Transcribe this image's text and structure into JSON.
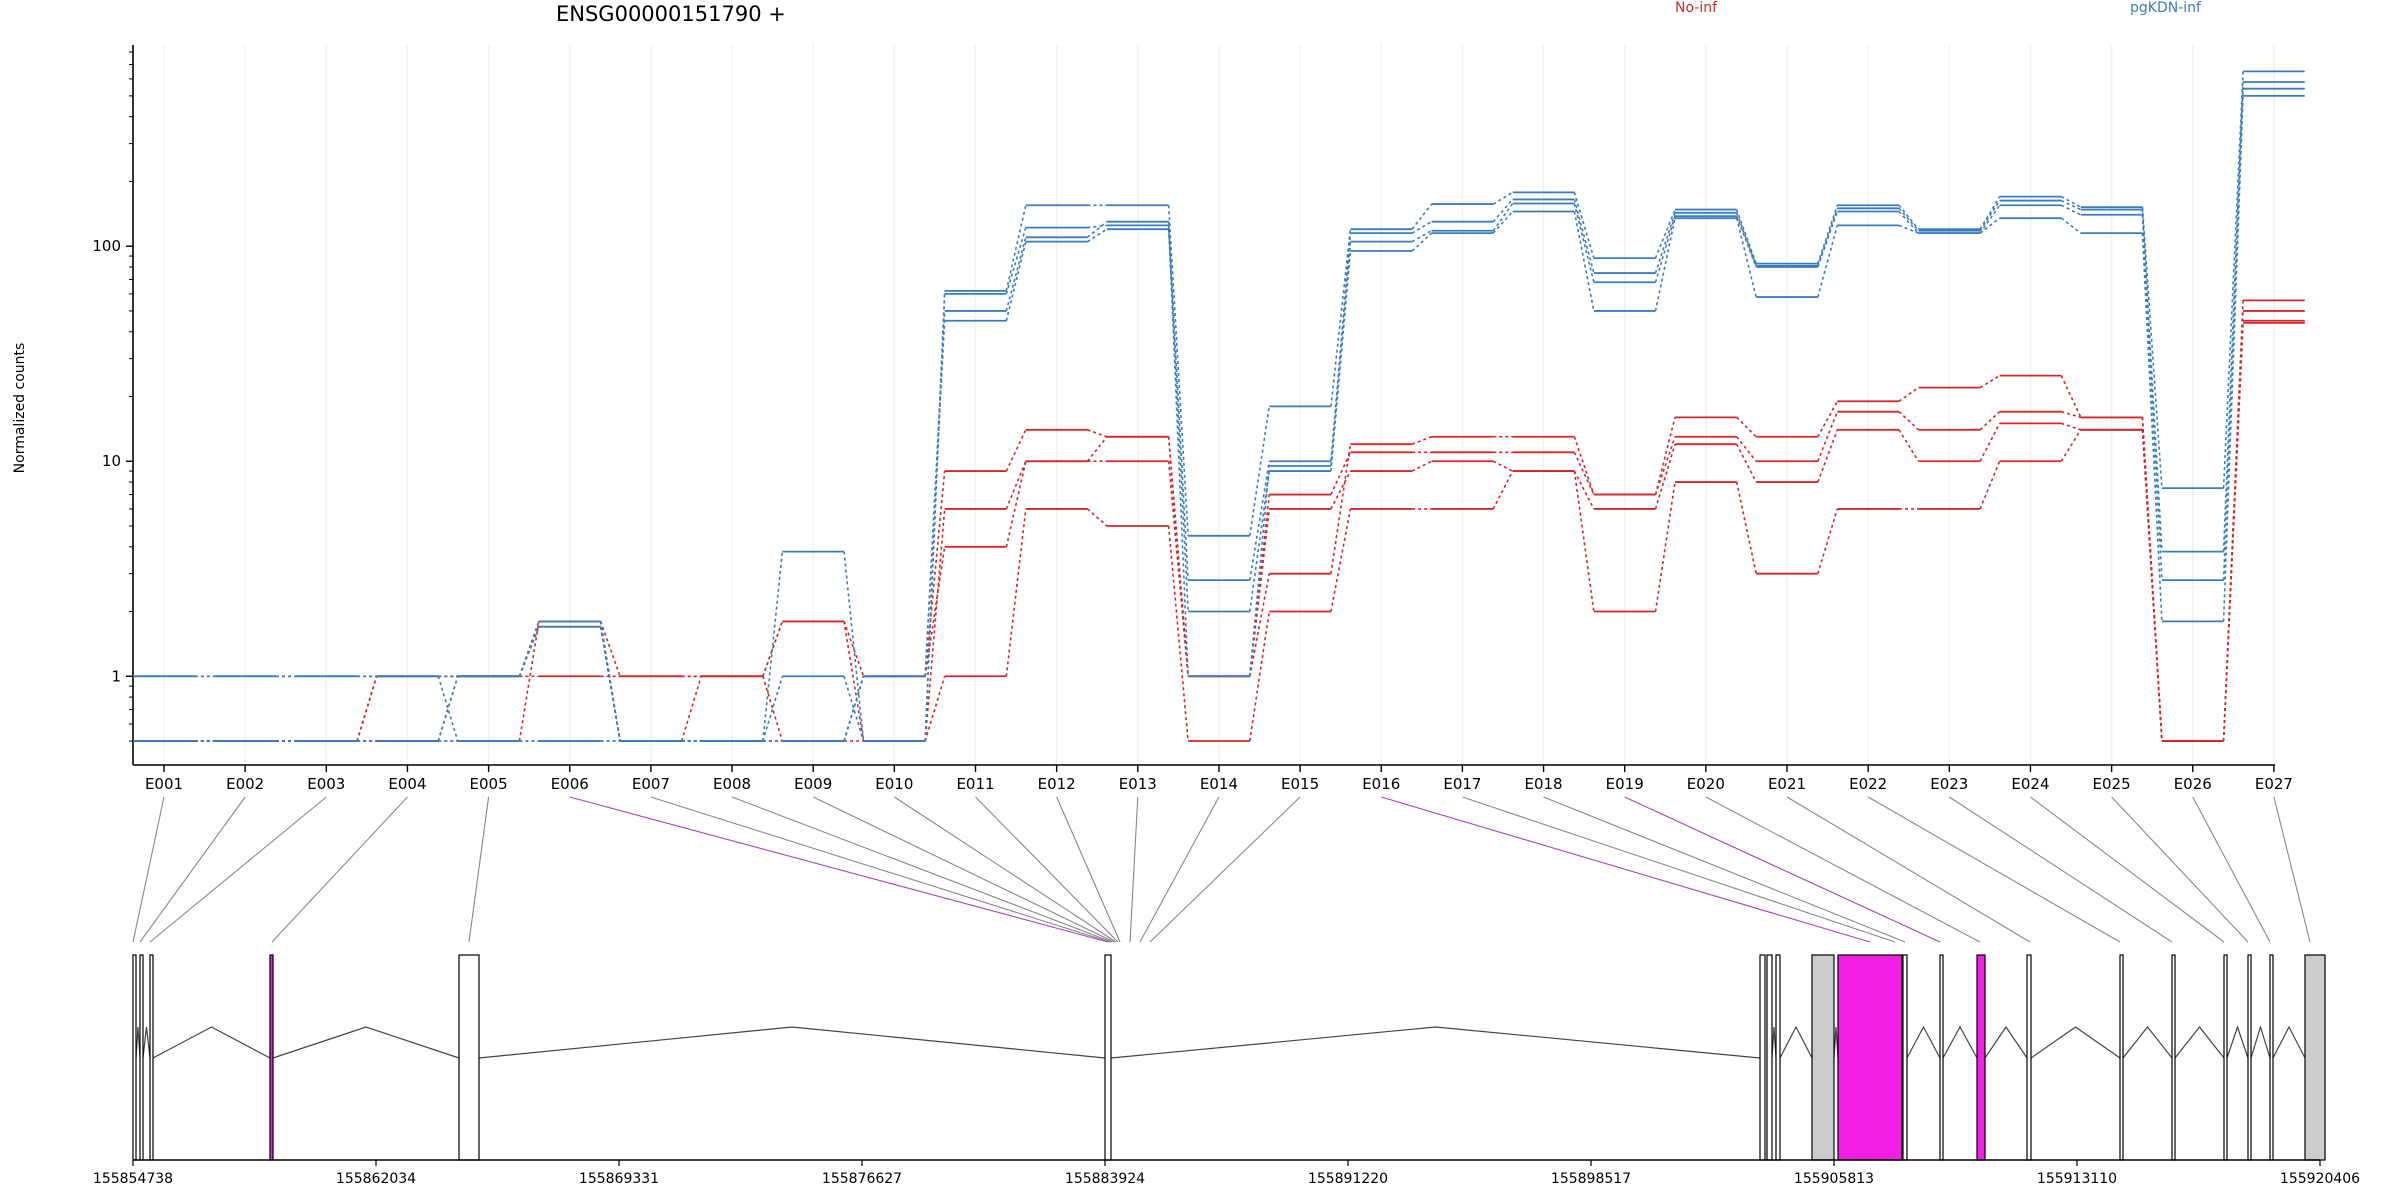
{
  "chart_data": {
    "type": "line",
    "title": "ENSG00000151790 +",
    "ylabel": "Normalized counts",
    "yscale": "log",
    "ylim": [
      0.5,
      800
    ],
    "yticks": [
      1,
      10,
      100
    ],
    "categories": [
      "E001",
      "E002",
      "E003",
      "E004",
      "E005",
      "E006",
      "E007",
      "E008",
      "E009",
      "E010",
      "E011",
      "E012",
      "E013",
      "E014",
      "E015",
      "E016",
      "E017",
      "E018",
      "E019",
      "E020",
      "E021",
      "E022",
      "E023",
      "E024",
      "E025",
      "E026",
      "E027"
    ],
    "legend": [
      {
        "name": "No-inf",
        "color": "#d62728"
      },
      {
        "name": "pgKDN-inf",
        "color": "#3a7dbe"
      }
    ],
    "series": [
      {
        "group": "No-inf",
        "values": [
          0.5,
          0.5,
          0.5,
          1,
          1,
          1.8,
          1,
          1,
          1.8,
          1,
          9,
          14,
          13,
          1,
          3,
          12,
          13,
          13,
          7,
          16,
          13,
          19,
          22,
          25,
          16,
          0.5,
          56
        ]
      },
      {
        "group": "No-inf",
        "values": [
          0.5,
          0.5,
          0.5,
          0.5,
          1,
          1.7,
          0.5,
          1,
          1.8,
          0.5,
          6,
          10,
          13,
          1,
          7,
          11,
          11,
          11,
          7,
          13,
          10,
          17,
          14,
          17,
          16,
          0.5,
          50
        ]
      },
      {
        "group": "No-inf",
        "values": [
          0.5,
          0.5,
          0.5,
          1,
          1,
          1,
          1,
          1,
          0.5,
          1,
          4,
          10,
          10,
          1,
          6,
          9,
          10,
          9,
          6,
          12,
          8,
          14,
          10,
          15,
          14,
          0.5,
          45
        ]
      },
      {
        "group": "No-inf",
        "values": [
          0.5,
          0.5,
          0.5,
          0.5,
          0.5,
          1.8,
          0.5,
          0.5,
          0.5,
          0.5,
          1,
          6,
          5,
          0.5,
          2,
          6,
          6,
          9,
          2,
          8,
          3,
          6,
          6,
          10,
          14,
          0.5,
          44
        ]
      },
      {
        "group": "pgKDN-inf",
        "values": [
          1,
          1,
          1,
          1,
          0.5,
          0.5,
          0.5,
          0.5,
          3.8,
          0.5,
          62,
          155,
          155,
          4.5,
          18,
          120,
          157,
          178,
          88,
          148,
          83,
          155,
          120,
          170,
          152,
          7.5,
          650
        ]
      },
      {
        "group": "pgKDN-inf",
        "values": [
          1,
          1,
          1,
          1,
          1,
          1.7,
          0.5,
          0.5,
          1,
          0.5,
          60,
          122,
          125,
          2.8,
          10,
          115,
          130,
          165,
          75,
          143,
          81,
          150,
          118,
          163,
          148,
          3.8,
          580
        ]
      },
      {
        "group": "pgKDN-inf",
        "values": [
          0.5,
          0.5,
          0.5,
          0.5,
          1,
          1.8,
          0.5,
          0.5,
          0.5,
          1,
          50,
          110,
          130,
          1,
          9.5,
          105,
          118,
          158,
          68,
          138,
          80,
          145,
          115,
          155,
          140,
          2.8,
          540
        ]
      },
      {
        "group": "pgKDN-inf",
        "values": [
          0.5,
          0.5,
          0.5,
          0.5,
          0.5,
          0.5,
          0.5,
          0.5,
          0.5,
          1,
          45,
          105,
          120,
          2,
          9,
          95,
          115,
          145,
          50,
          135,
          58,
          125,
          115,
          135,
          115,
          1.8,
          500
        ]
      }
    ],
    "gene_model": {
      "coordinate_labels": [
        "155854738",
        "155862034",
        "155869331",
        "155876627",
        "155883924",
        "155891220",
        "155898517",
        "155905813",
        "155913110",
        "155920406"
      ],
      "highlighted_exons": [
        "E006",
        "E016",
        "E019"
      ],
      "highlight_color": "#f21fe4",
      "exon_color": "#cccccc"
    }
  }
}
